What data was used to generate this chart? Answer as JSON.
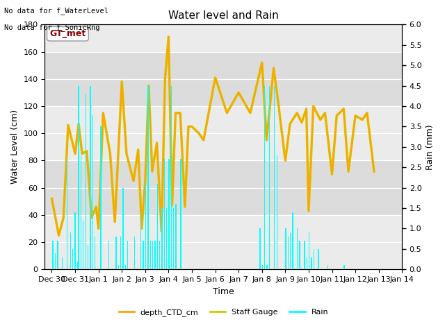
{
  "title": "Water level and Rain",
  "xlabel": "Time",
  "ylabel_left": "Water Level (cm)",
  "ylabel_right": "Rain (mm)",
  "annotation_line1": "No data for f_WaterLevel",
  "annotation_line2": "No data for f_SonicRng",
  "box_label": "GT_met",
  "ylim_left": [
    0,
    180
  ],
  "ylim_right": [
    0,
    6.0
  ],
  "yticks_left": [
    0,
    20,
    40,
    60,
    80,
    100,
    120,
    140,
    160,
    180
  ],
  "yticks_right": [
    0.0,
    0.5,
    1.0,
    1.5,
    2.0,
    2.5,
    3.0,
    3.5,
    4.0,
    4.5,
    5.0,
    5.5,
    6.0
  ],
  "color_ctd": "#FFA500",
  "color_staff": "#CCCC00",
  "color_rain": "#00FFFF",
  "fig_bg": "#FFFFFF",
  "band_colors_alt": [
    "#EBEBEB",
    "#DCDCDC"
  ],
  "band_edges": [
    0,
    40,
    80,
    120,
    160,
    200
  ],
  "xtick_labels": [
    "Dec 30",
    "Dec 31",
    "Jan 1",
    "Jan 2",
    "Jan 3",
    "Jan 4",
    "Jan 5",
    "Jan 6",
    "Jan 7",
    "Jan 8",
    "Jan 9",
    "Jan 10",
    "Jan 11",
    "Jan 12",
    "Jan 13",
    "Jan 14"
  ],
  "ctd_x": [
    0,
    0.3,
    0.5,
    0.7,
    1.0,
    1.15,
    1.3,
    1.5,
    1.7,
    1.9,
    2.0,
    2.2,
    2.5,
    2.7,
    3.0,
    3.2,
    3.5,
    3.7,
    3.85,
    4.0,
    4.15,
    4.3,
    4.5,
    4.7,
    4.85,
    5.0,
    5.15,
    5.3,
    5.5,
    5.7,
    5.85,
    6.0,
    6.3,
    6.5,
    7.0,
    7.5,
    8.0,
    8.5,
    9.0,
    9.2,
    9.5,
    9.7,
    10.0,
    10.2,
    10.5,
    10.7,
    10.9,
    11.0,
    11.2,
    11.5,
    11.7,
    12.0,
    12.2,
    12.5,
    12.7,
    13.0,
    13.3,
    13.5,
    13.8
  ],
  "ctd_y": [
    52,
    25,
    38,
    106,
    85,
    107,
    85,
    87,
    38,
    46,
    30,
    115,
    85,
    35,
    138,
    85,
    65,
    88,
    30,
    65,
    135,
    72,
    93,
    28,
    140,
    171,
    47,
    115,
    115,
    46,
    105,
    105,
    100,
    95,
    141,
    115,
    130,
    115,
    152,
    95,
    148,
    122,
    80,
    107,
    115,
    108,
    118,
    43,
    120,
    110,
    115,
    70,
    113,
    118,
    72,
    113,
    110,
    115,
    72
  ],
  "rain_x": [
    0.05,
    0.15,
    0.25,
    0.45,
    0.65,
    0.8,
    0.9,
    1.0,
    1.1,
    1.15,
    1.25,
    1.35,
    1.45,
    1.55,
    1.65,
    1.75,
    1.85,
    2.1,
    2.45,
    2.75,
    2.85,
    2.95,
    3.05,
    3.15,
    3.25,
    3.55,
    3.82,
    3.92,
    4.02,
    4.12,
    4.22,
    4.32,
    4.42,
    4.52,
    4.62,
    4.72,
    4.82,
    4.92,
    5.02,
    5.12,
    5.22,
    5.32,
    5.52,
    8.92,
    9.02,
    9.12,
    9.22,
    9.32,
    9.52,
    9.65,
    10.02,
    10.12,
    10.22,
    10.32,
    10.52,
    10.62,
    10.82,
    10.92,
    11.02,
    11.12,
    11.22,
    11.42,
    11.82,
    12.52
  ],
  "rain_y": [
    0.7,
    0.4,
    0.7,
    0.3,
    2.7,
    0.9,
    0.5,
    1.4,
    0.2,
    4.5,
    2.8,
    1.2,
    4.3,
    0.6,
    4.5,
    3.8,
    0.8,
    3.5,
    0.7,
    0.8,
    0.1,
    0.8,
    2.0,
    0.1,
    0.7,
    0.8,
    1.4,
    0.7,
    2.1,
    4.5,
    0.7,
    0.7,
    0.7,
    2.1,
    0.7,
    1.5,
    2.7,
    1.5,
    2.7,
    4.5,
    1.5,
    1.6,
    2.7,
    1.0,
    0.1,
    4.5,
    0.1,
    4.5,
    4.5,
    2.8,
    1.0,
    0.8,
    0.9,
    1.4,
    1.0,
    0.7,
    0.7,
    0.3,
    0.9,
    0.3,
    0.5,
    0.5,
    0.1,
    0.1
  ]
}
